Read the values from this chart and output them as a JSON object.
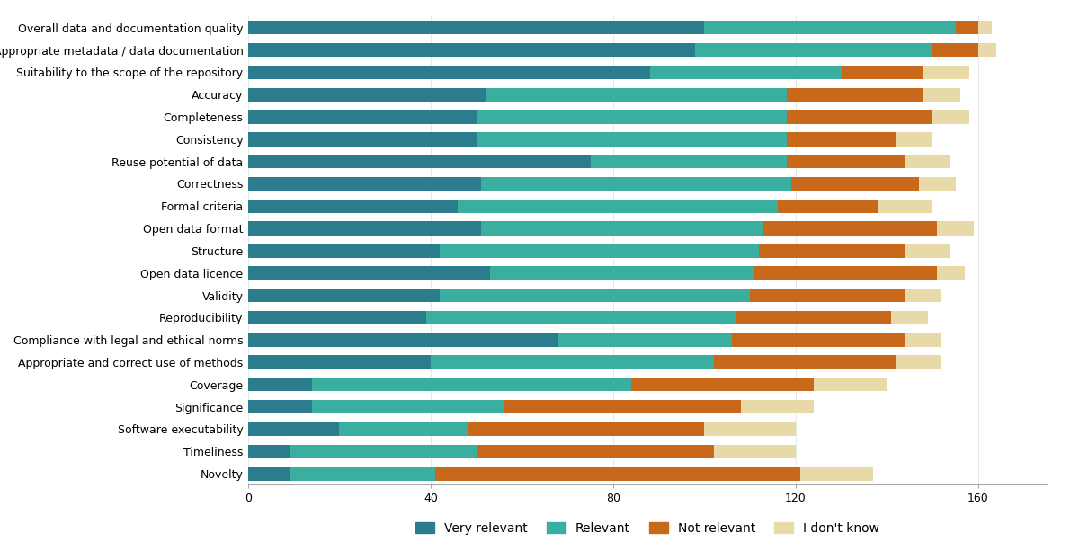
{
  "categories": [
    "Overall data and documentation quality",
    "Appropriate metadata / data documentation",
    "Suitability to the scope of the repository",
    "Accuracy",
    "Completeness",
    "Consistency",
    "Reuse potential of data",
    "Correctness",
    "Formal criteria",
    "Open data format",
    "Structure",
    "Open data licence",
    "Validity",
    "Reproducibility",
    "Compliance with legal and ethical norms",
    "Appropriate and correct use of methods",
    "Coverage",
    "Significance",
    "Software executability",
    "Timeliness",
    "Novelty"
  ],
  "very_relevant": [
    100,
    98,
    88,
    52,
    50,
    50,
    75,
    51,
    46,
    51,
    42,
    53,
    42,
    39,
    68,
    40,
    14,
    14,
    20,
    9,
    9
  ],
  "relevant": [
    55,
    52,
    42,
    66,
    68,
    68,
    43,
    68,
    70,
    62,
    70,
    58,
    68,
    68,
    38,
    62,
    70,
    42,
    28,
    41,
    32
  ],
  "not_relevant": [
    5,
    10,
    18,
    30,
    32,
    24,
    26,
    28,
    22,
    38,
    32,
    40,
    34,
    34,
    38,
    40,
    40,
    52,
    52,
    52,
    80
  ],
  "i_dont_know": [
    3,
    4,
    10,
    8,
    8,
    8,
    10,
    8,
    12,
    8,
    10,
    6,
    8,
    8,
    8,
    10,
    16,
    16,
    20,
    18,
    16
  ],
  "colors": {
    "very_relevant": "#2b7d8e",
    "relevant": "#3aafa0",
    "not_relevant": "#c8681a",
    "i_dont_know": "#e8d9a8"
  },
  "legend_labels": [
    "Very relevant",
    "Relevant",
    "Not relevant",
    "I don't know"
  ],
  "xlim": [
    0,
    175
  ],
  "xticks": [
    0,
    40,
    80,
    120,
    160
  ],
  "background_color": "#ffffff",
  "bar_height": 0.62,
  "axis_fontsize": 9
}
